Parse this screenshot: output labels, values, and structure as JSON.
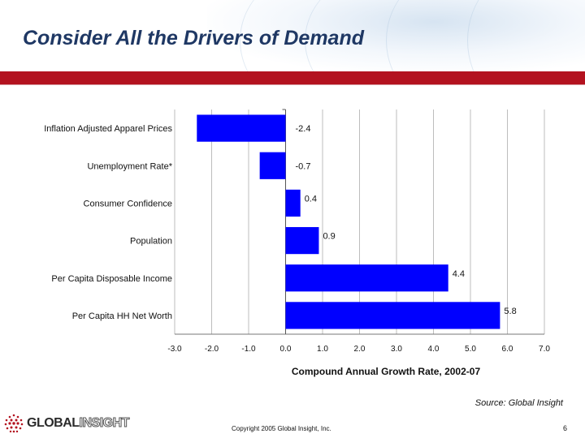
{
  "slide": {
    "title": "Consider All the Drivers of Demand",
    "source": "Source: Global Insight",
    "copyright": "Copyright 2005 Global Insight, Inc.",
    "page_number": "6",
    "logo_word_1": "GLOBAL",
    "logo_word_2": "INSIGHT"
  },
  "colors": {
    "title": "#1f3864",
    "band": "#b3121f",
    "bar": "#0000ff"
  },
  "chart_data": {
    "type": "bar",
    "orientation": "horizontal",
    "categories": [
      "Inflation Adjusted Apparel Prices",
      "Unemployment Rate*",
      "Consumer Confidence",
      "Population",
      "Per Capita Disposable Income",
      "Per Capita HH Net Worth"
    ],
    "values": [
      -2.4,
      -0.7,
      0.4,
      0.9,
      4.4,
      5.8
    ],
    "value_labels": [
      "-2.4",
      "-0.7",
      "0.4",
      "0.9",
      "4.4",
      "5.8"
    ],
    "xlabel": "Compound Annual Growth Rate, 2002-07",
    "xlim": [
      -3.0,
      7.0
    ],
    "xticks": [
      -3.0,
      -2.0,
      -1.0,
      0.0,
      1.0,
      2.0,
      3.0,
      4.0,
      5.0,
      6.0,
      7.0
    ],
    "xtick_labels": [
      "-3.0",
      "-2.0",
      "-1.0",
      "0.0",
      "1.0",
      "2.0",
      "3.0",
      "4.0",
      "5.0",
      "6.0",
      "7.0"
    ],
    "grid": true
  }
}
